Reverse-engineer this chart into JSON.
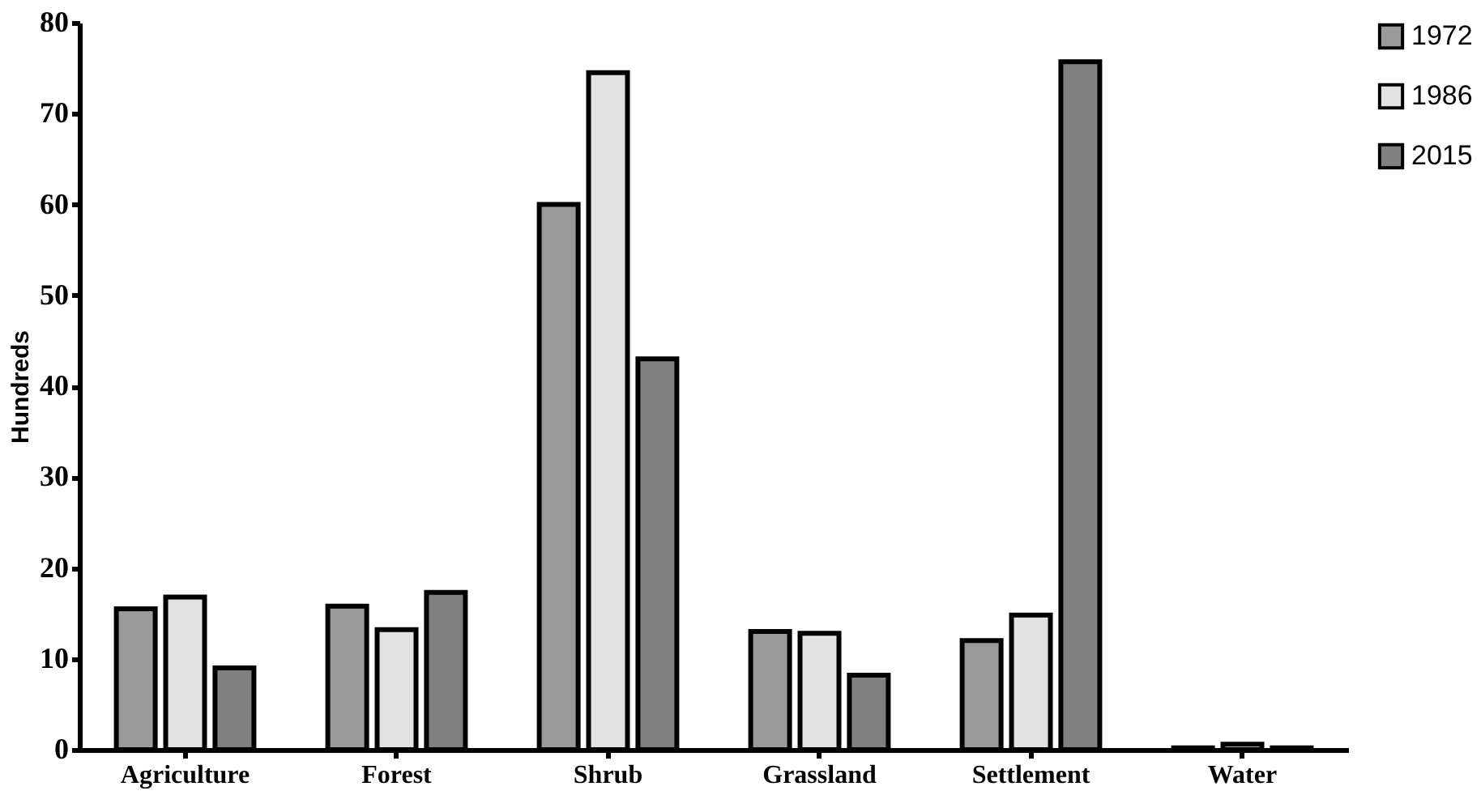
{
  "chart_data": {
    "type": "bar",
    "ylabel": "Hundreds",
    "categories": [
      "Agriculture",
      "Forest",
      "Shrub",
      "Grassland",
      "Settlement",
      "Water"
    ],
    "series": [
      {
        "name": "1972",
        "color": "#9a9a9a",
        "values": [
          15.5,
          15.8,
          60,
          13,
          12,
          0.2
        ]
      },
      {
        "name": "1986",
        "color": "#e2e2e2",
        "values": [
          16.8,
          13.2,
          74.5,
          12.8,
          14.8,
          0.6
        ]
      },
      {
        "name": "2015",
        "color": "#808080",
        "values": [
          9,
          17.3,
          43,
          8.2,
          75.7,
          0.2
        ]
      }
    ],
    "ylim": [
      0,
      80
    ],
    "yticks": [
      0,
      10,
      20,
      30,
      40,
      50,
      60,
      70,
      80
    ],
    "grid": false,
    "legend": "right"
  }
}
